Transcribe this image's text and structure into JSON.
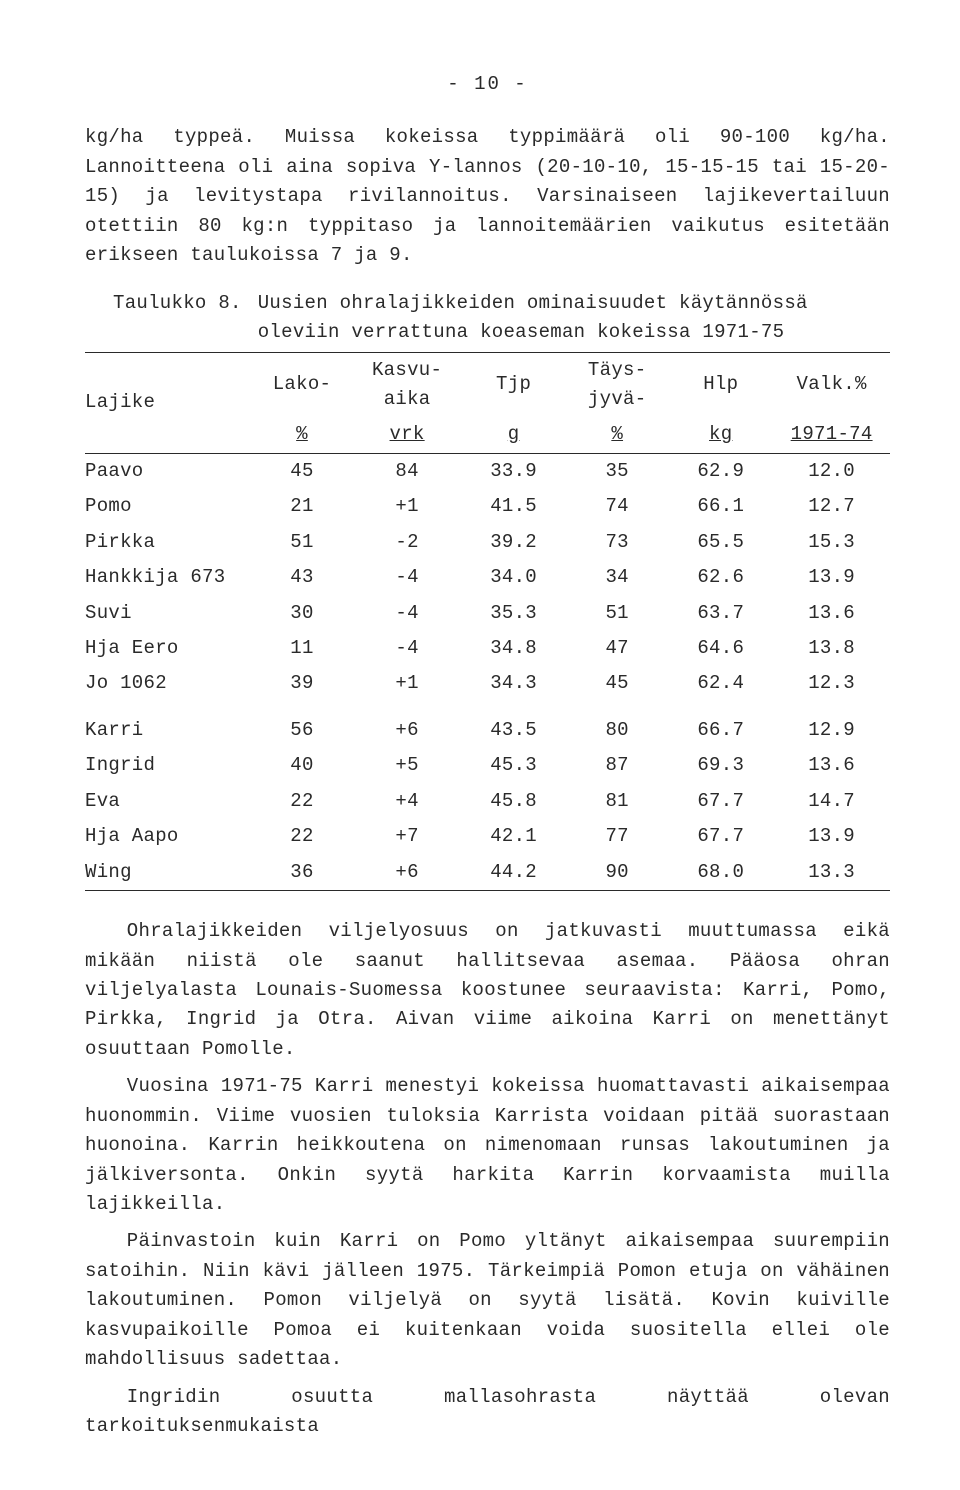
{
  "page_number": "- 10 -",
  "para1": "kg/ha typpeä.  Muissa kokeissa typpimäärä oli 90-100 kg/ha.  Lannoitteena oli aina sopiva Y-lannos (20-10-10, 15-15-15 tai 15-20-15) ja levitystapa rivilannoitus.  Varsinaiseen lajikevertailuun otettiin 80 kg:n typpitaso ja lannoitemäärien vaikutus esitetään erikseen taulukoissa 7 ja 9.",
  "table": {
    "caption_label": "Taulukko 8.",
    "caption_text": "Uusien ohralajikkeiden ominaisuudet käytännössä oleviin verrattuna koeaseman kokeissa 1971-75",
    "columns": {
      "lajike": {
        "line1": "Lajike",
        "line2": ""
      },
      "lako": {
        "line1": "Lako-",
        "line2": "%"
      },
      "kasvu": {
        "line1": "Kasvu-\naika",
        "line2": "vrk"
      },
      "tjp": {
        "line1": "Tjp",
        "line2": "g"
      },
      "tays": {
        "line1": "Täys-\njyvä-",
        "line2": "%"
      },
      "hlp": {
        "line1": "Hlp",
        "line2": "kg"
      },
      "valk": {
        "line1": "Valk.%",
        "line2": "1971-74"
      }
    },
    "rows_group1": [
      {
        "lajike": "Paavo",
        "lako": "45",
        "kasvu": "84",
        "tjp": "33.9",
        "tays": "35",
        "hlp": "62.9",
        "valk": "12.0"
      },
      {
        "lajike": "Pomo",
        "lako": "21",
        "kasvu": "+1",
        "tjp": "41.5",
        "tays": "74",
        "hlp": "66.1",
        "valk": "12.7"
      },
      {
        "lajike": "Pirkka",
        "lako": "51",
        "kasvu": "-2",
        "tjp": "39.2",
        "tays": "73",
        "hlp": "65.5",
        "valk": "15.3"
      },
      {
        "lajike": "Hankkija 673",
        "lako": "43",
        "kasvu": "-4",
        "tjp": "34.0",
        "tays": "34",
        "hlp": "62.6",
        "valk": "13.9"
      },
      {
        "lajike": "Suvi",
        "lako": "30",
        "kasvu": "-4",
        "tjp": "35.3",
        "tays": "51",
        "hlp": "63.7",
        "valk": "13.6"
      },
      {
        "lajike": "Hja Eero",
        "lako": "11",
        "kasvu": "-4",
        "tjp": "34.8",
        "tays": "47",
        "hlp": "64.6",
        "valk": "13.8"
      },
      {
        "lajike": "Jo 1062",
        "lako": "39",
        "kasvu": "+1",
        "tjp": "34.3",
        "tays": "45",
        "hlp": "62.4",
        "valk": "12.3"
      }
    ],
    "rows_group2": [
      {
        "lajike": "Karri",
        "lako": "56",
        "kasvu": "+6",
        "tjp": "43.5",
        "tays": "80",
        "hlp": "66.7",
        "valk": "12.9"
      },
      {
        "lajike": "Ingrid",
        "lako": "40",
        "kasvu": "+5",
        "tjp": "45.3",
        "tays": "87",
        "hlp": "69.3",
        "valk": "13.6"
      },
      {
        "lajike": "Eva",
        "lako": "22",
        "kasvu": "+4",
        "tjp": "45.8",
        "tays": "81",
        "hlp": "67.7",
        "valk": "14.7"
      },
      {
        "lajike": "Hja Aapo",
        "lako": "22",
        "kasvu": "+7",
        "tjp": "42.1",
        "tays": "77",
        "hlp": "67.7",
        "valk": "13.9"
      },
      {
        "lajike": "Wing",
        "lako": "36",
        "kasvu": "+6",
        "tjp": "44.2",
        "tays": "90",
        "hlp": "68.0",
        "valk": "13.3"
      }
    ]
  },
  "para2": "Ohralajikkeiden viljelyosuus on jatkuvasti muuttumassa eikä mikään niistä ole saanut hallitsevaa asemaa.  Pääosa ohran viljelyalasta Lounais-Suomessa koostunee seuraavista: Karri, Pomo, Pirkka, Ingrid ja Otra.  Aivan viime aikoina Karri on menettänyt osuuttaan Pomolle.",
  "para3": "Vuosina 1971-75 Karri menestyi kokeissa huomattavasti aikaisempaa huonommin.  Viime vuosien tuloksia Karrista voidaan pitää suorastaan huonoina.  Karrin heikkoutena on nimenomaan runsas lakoutuminen ja jälkiversonta.  Onkin syytä harkita Karrin korvaamista muilla lajikkeilla.",
  "para4": "Päinvastoin kuin Karri on Pomo yltänyt aikaisempaa suurempiin satoihin.  Niin kävi jälleen 1975.  Tärkeimpiä Pomon etuja on vähäinen lakoutuminen.  Pomon viljelyä on syytä lisätä.  Kovin kuiville kasvupaikoille Pomoa ei kuitenkaan voida suositella ellei ole mahdollisuus sadettaa.",
  "para5": "Ingridin osuutta mallasohrasta näyttää olevan tarkoituksenmukaista"
}
